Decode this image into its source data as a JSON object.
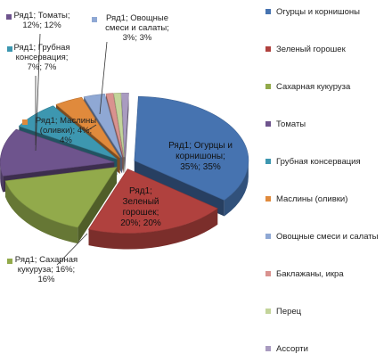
{
  "chart_data": {
    "type": "pie",
    "style": "3d-exploded",
    "series_name": "Ряд1",
    "legend_position": "right",
    "slices": [
      {
        "category": "Огурцы и корнишоны",
        "value": 35,
        "percent": "35%",
        "color": "#4673b0",
        "label": "Ряд1; Огурцы и\nкорнишоны;\n35%; 35%"
      },
      {
        "category": "Зеленый горошек",
        "value": 20,
        "percent": "20%",
        "color": "#b0413e",
        "label": "Ряд1;\nЗеленый\nгорошек;\n20%; 20%"
      },
      {
        "category": "Сахарная кукуруза",
        "value": 16,
        "percent": "16%",
        "color": "#92aa4b",
        "label": "Ряд1; Сахарная\nкукуруза; 16%;\n16%"
      },
      {
        "category": "Томаты",
        "value": 12,
        "percent": "12%",
        "color": "#6e548d",
        "label": "Ряд1; Томаты;\n12%; 12%"
      },
      {
        "category": "Грубная консервация",
        "value": 7,
        "percent": "7%",
        "color": "#3d97b0",
        "label": "Ряд1; Грубная\nконсервация;\n7%; 7%"
      },
      {
        "category": "Маслины (оливки)",
        "value": 4,
        "percent": "4%",
        "color": "#e08a3c",
        "label": "Ряд1; Маслины\n(оливки); 4%;\n4%"
      },
      {
        "category": "Овощные смеси и салаты",
        "value": 3,
        "percent": "3%",
        "color": "#8fa8d4",
        "label": "Ряд1; Овощные\nсмеси и салаты;\n3%; 3%"
      },
      {
        "category": "Баклажаны, икра",
        "value": 1,
        "percent": "1%",
        "color": "#d9928f",
        "label": ""
      },
      {
        "category": "Перец",
        "value": 1,
        "percent": "1%",
        "color": "#c3d49a",
        "label": ""
      },
      {
        "category": "Ассорти",
        "value": 1,
        "percent": "1%",
        "color": "#a99bc0",
        "label": ""
      }
    ]
  }
}
